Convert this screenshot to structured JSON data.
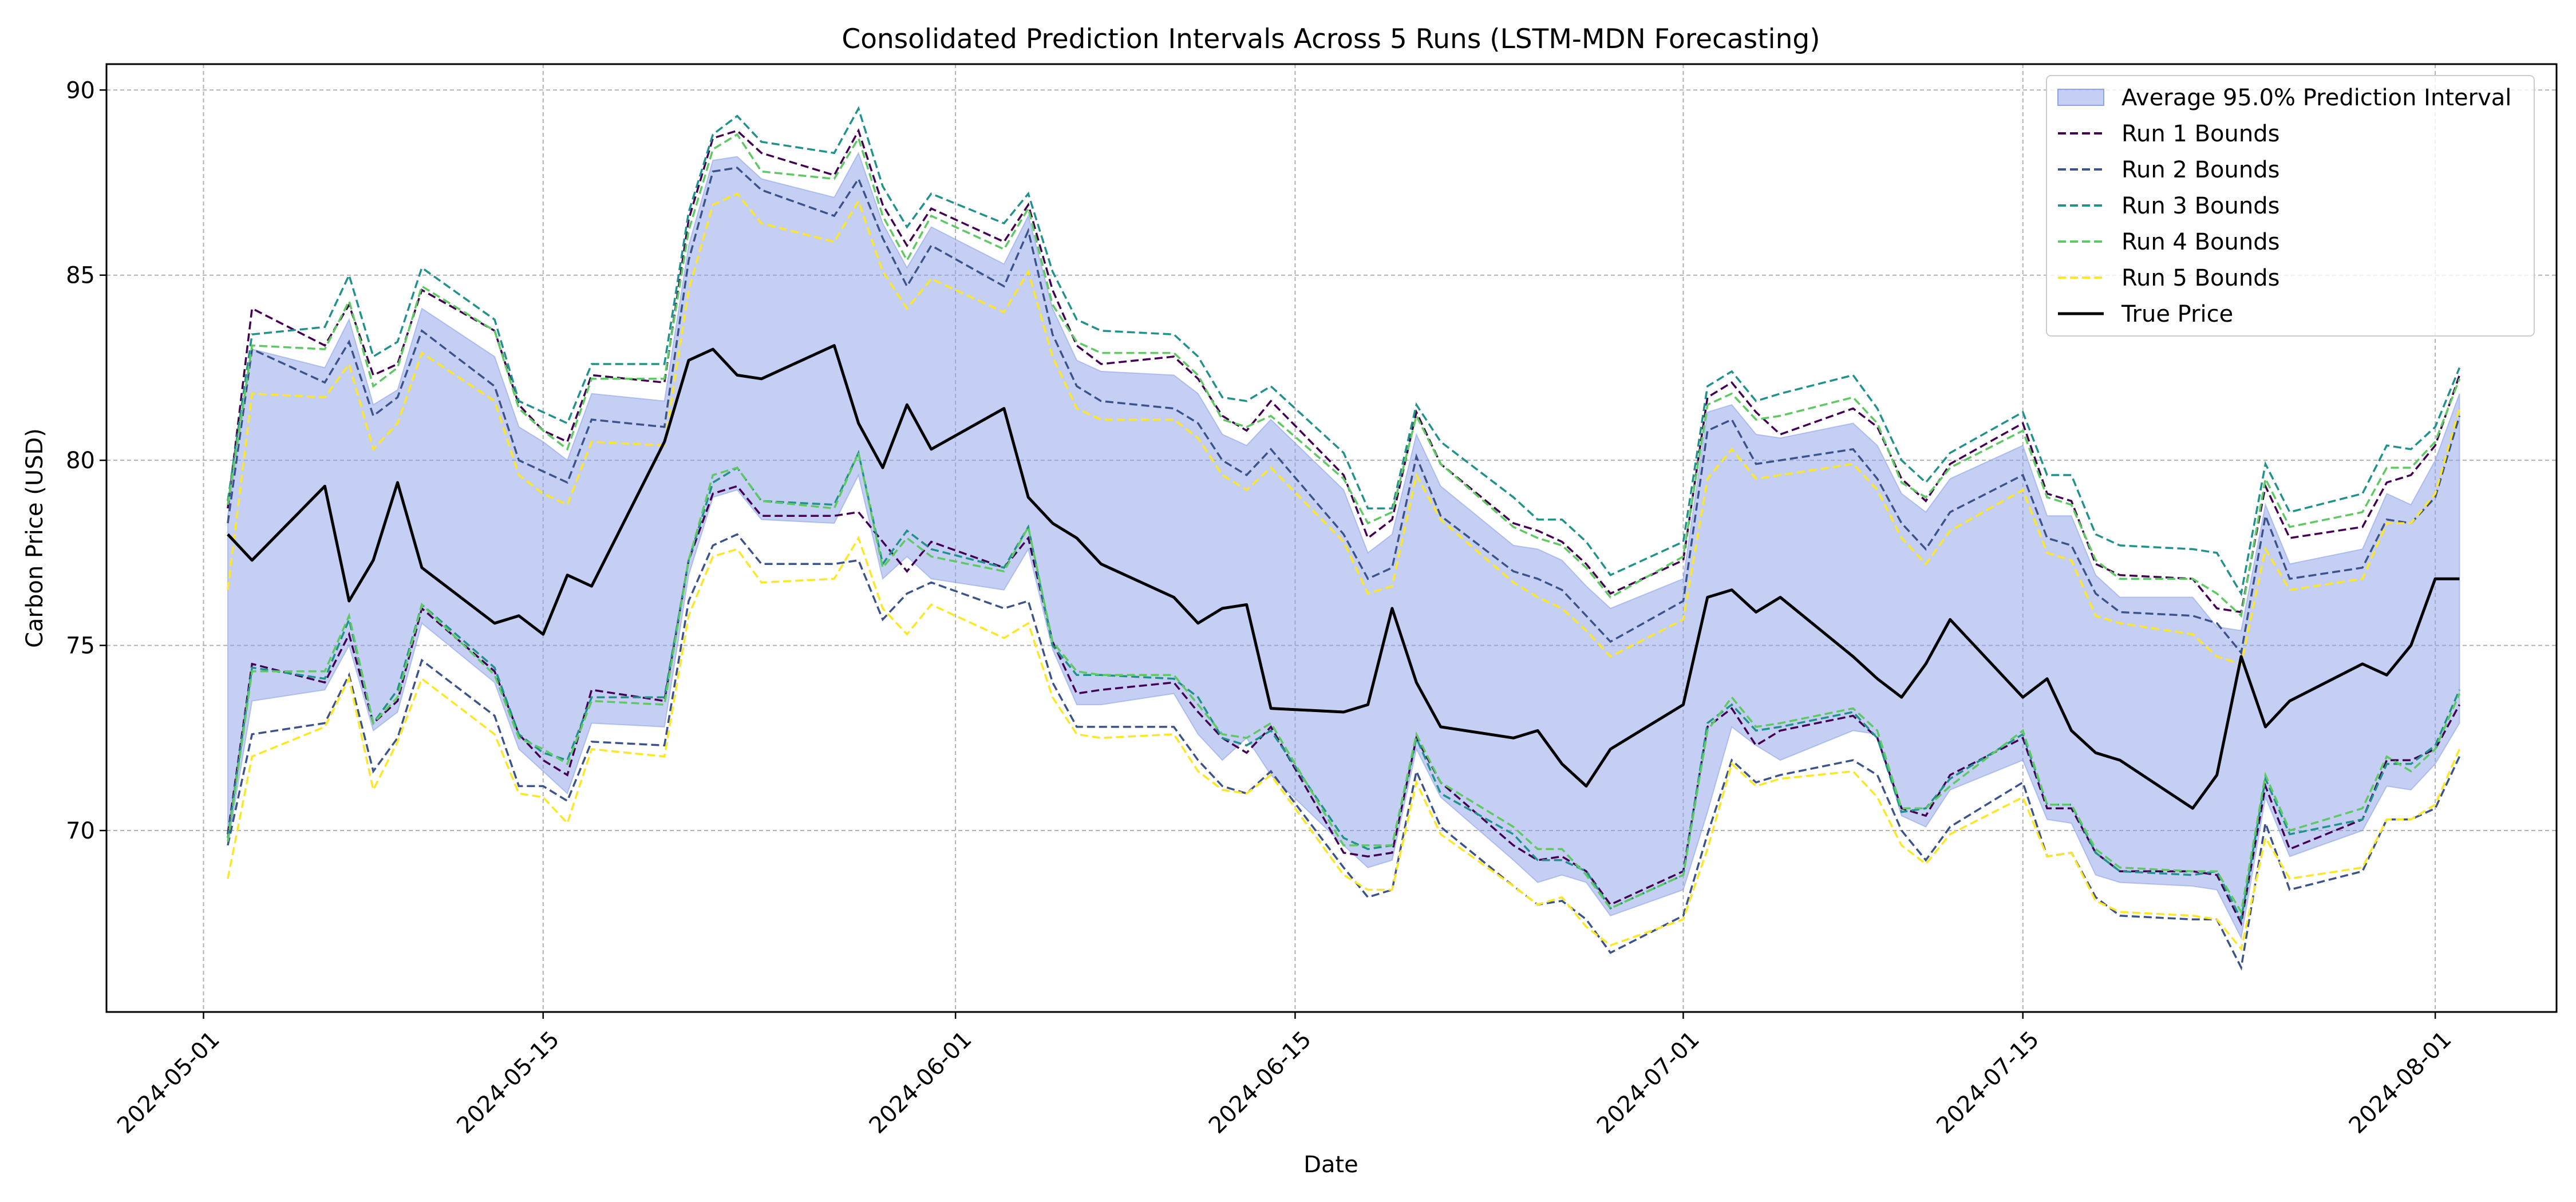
{
  "chart_data": {
    "type": "line",
    "title": "Consolidated Prediction Intervals Across 5 Runs (LSTM-MDN Forecasting)",
    "xlabel": "Date",
    "ylabel": "Carbon Price (USD)",
    "x_tick_labels": [
      "2024-05-01",
      "2024-05-15",
      "2024-06-01",
      "2024-06-15",
      "2024-07-01",
      "2024-07-15",
      "2024-08-01"
    ],
    "y_ticks": [
      70,
      75,
      80,
      85,
      90
    ],
    "ylim": [
      65.1,
      90.7
    ],
    "xlim": [
      "2024-04-27",
      "2024-08-06"
    ],
    "grid": true,
    "legend_position": "top-right",
    "x": [
      "2024-05-02",
      "2024-05-03",
      "2024-05-06",
      "2024-05-07",
      "2024-05-08",
      "2024-05-09",
      "2024-05-10",
      "2024-05-13",
      "2024-05-14",
      "2024-05-15",
      "2024-05-16",
      "2024-05-17",
      "2024-05-20",
      "2024-05-21",
      "2024-05-22",
      "2024-05-23",
      "2024-05-24",
      "2024-05-27",
      "2024-05-28",
      "2024-05-29",
      "2024-05-30",
      "2024-05-31",
      "2024-06-03",
      "2024-06-04",
      "2024-06-05",
      "2024-06-06",
      "2024-06-07",
      "2024-06-10",
      "2024-06-11",
      "2024-06-12",
      "2024-06-13",
      "2024-06-14",
      "2024-06-17",
      "2024-06-18",
      "2024-06-19",
      "2024-06-20",
      "2024-06-21",
      "2024-06-24",
      "2024-06-25",
      "2024-06-26",
      "2024-06-27",
      "2024-06-28",
      "2024-07-01",
      "2024-07-02",
      "2024-07-03",
      "2024-07-04",
      "2024-07-05",
      "2024-07-08",
      "2024-07-09",
      "2024-07-10",
      "2024-07-11",
      "2024-07-12",
      "2024-07-15",
      "2024-07-16",
      "2024-07-17",
      "2024-07-18",
      "2024-07-19",
      "2024-07-22",
      "2024-07-23",
      "2024-07-24",
      "2024-07-25",
      "2024-07-26",
      "2024-07-29",
      "2024-07-30",
      "2024-07-31",
      "2024-08-01",
      "2024-08-02"
    ],
    "true_price": {
      "name": "True Price",
      "color": "#000000",
      "values": [
        78.0,
        77.3,
        79.3,
        76.2,
        77.3,
        79.4,
        77.1,
        75.6,
        75.8,
        75.3,
        76.9,
        76.6,
        80.5,
        82.7,
        83.0,
        82.3,
        82.2,
        83.1,
        81.0,
        79.8,
        81.5,
        80.3,
        81.4,
        79.0,
        78.3,
        77.9,
        77.2,
        76.3,
        75.6,
        76.0,
        76.1,
        73.3,
        73.2,
        73.4,
        76.0,
        74.0,
        72.8,
        72.5,
        72.7,
        71.8,
        71.2,
        72.2,
        73.4,
        76.3,
        76.5,
        75.9,
        76.3,
        74.7,
        74.1,
        73.6,
        74.5,
        75.7,
        73.6,
        74.1,
        72.7,
        72.1,
        71.9,
        70.6,
        71.5,
        74.7,
        72.8,
        73.5,
        74.5,
        74.2,
        75.0,
        76.8,
        76.8
      ]
    },
    "interval": {
      "name": "Average 95.0% Prediction Interval",
      "color": "#8ea3e8",
      "upper": [
        78.5,
        83.0,
        82.5,
        83.8,
        81.5,
        81.9,
        84.1,
        82.8,
        80.9,
        80.5,
        80.0,
        81.8,
        81.6,
        85.8,
        88.1,
        88.2,
        87.6,
        87.1,
        88.3,
        86.4,
        85.2,
        86.3,
        85.3,
        86.6,
        84.1,
        82.7,
        82.4,
        82.3,
        81.8,
        80.7,
        80.4,
        81.1,
        79.2,
        77.5,
        78.0,
        80.7,
        79.3,
        77.7,
        77.6,
        77.3,
        76.6,
        76.0,
        76.8,
        81.3,
        81.5,
        80.7,
        80.6,
        81.0,
        80.4,
        79.1,
        78.6,
        79.5,
        80.4,
        78.5,
        78.5,
        76.9,
        76.3,
        76.3,
        75.5,
        75.4,
        78.8,
        77.2,
        77.6,
        79.1,
        78.8,
        80.0,
        81.8
      ],
      "lower": [
        69.6,
        73.5,
        73.8,
        75.0,
        72.7,
        73.2,
        75.6,
        74.0,
        72.2,
        71.6,
        71.0,
        72.9,
        72.8,
        76.9,
        79.0,
        79.2,
        78.4,
        78.3,
        79.6,
        76.8,
        77.4,
        76.8,
        76.5,
        77.6,
        74.9,
        73.4,
        73.4,
        73.7,
        72.6,
        71.9,
        72.5,
        71.5,
        69.6,
        69.0,
        69.2,
        72.2,
        70.9,
        69.2,
        68.6,
        68.8,
        68.6,
        67.7,
        68.4,
        70.5,
        72.8,
        72.3,
        71.9,
        72.7,
        72.6,
        70.4,
        70.1,
        71.1,
        71.9,
        70.3,
        70.2,
        68.8,
        68.6,
        68.5,
        68.4,
        67.1,
        70.9,
        69.3,
        70.0,
        71.2,
        71.1,
        71.8,
        72.9
      ]
    },
    "series": [
      {
        "name": "Run 1 Bounds",
        "color": "#440154",
        "upper": [
          78.7,
          84.1,
          83.1,
          84.2,
          82.3,
          82.6,
          84.6,
          83.5,
          81.5,
          80.8,
          80.5,
          82.3,
          82.1,
          86.5,
          88.7,
          88.9,
          88.3,
          87.7,
          88.9,
          86.9,
          85.8,
          86.8,
          85.9,
          86.9,
          84.6,
          83.1,
          82.6,
          82.8,
          82.2,
          81.2,
          80.8,
          81.6,
          79.6,
          77.9,
          78.4,
          81.3,
          79.9,
          78.3,
          78.1,
          77.8,
          77.2,
          76.4,
          77.3,
          81.7,
          82.1,
          81.3,
          80.7,
          81.4,
          80.9,
          79.5,
          78.9,
          79.9,
          81.0,
          79.1,
          78.9,
          77.2,
          76.9,
          76.8,
          76.0,
          75.9,
          79.3,
          77.9,
          78.2,
          79.4,
          79.6,
          80.4,
          82.3
        ],
        "lower": [
          69.9,
          74.5,
          74.0,
          75.3,
          72.9,
          73.5,
          76.0,
          74.3,
          72.6,
          71.9,
          71.5,
          73.8,
          73.5,
          77.3,
          79.1,
          79.3,
          78.5,
          78.5,
          78.6,
          77.8,
          77.0,
          77.8,
          77.1,
          77.9,
          75.1,
          73.7,
          73.8,
          74.0,
          73.2,
          72.5,
          72.1,
          72.8,
          69.4,
          69.3,
          69.4,
          72.5,
          71.3,
          69.6,
          69.2,
          69.3,
          68.9,
          68.0,
          68.9,
          72.8,
          73.3,
          72.3,
          72.7,
          73.1,
          72.5,
          70.6,
          70.4,
          71.5,
          72.5,
          70.6,
          70.6,
          69.4,
          68.9,
          68.9,
          68.8,
          67.5,
          71.2,
          69.5,
          70.3,
          71.9,
          71.9,
          72.2,
          73.4
        ]
      },
      {
        "name": "Run 2 Bounds",
        "color": "#3b528b",
        "upper": [
          78.3,
          83.0,
          82.1,
          83.2,
          81.2,
          81.7,
          83.5,
          82.0,
          80.0,
          79.7,
          79.4,
          81.1,
          80.9,
          85.4,
          87.8,
          87.9,
          87.3,
          86.6,
          87.6,
          86.0,
          84.7,
          85.8,
          84.7,
          86.2,
          83.4,
          82.0,
          81.6,
          81.4,
          81.0,
          80.0,
          79.6,
          80.3,
          78.0,
          76.8,
          77.1,
          80.1,
          78.5,
          77.0,
          76.8,
          76.5,
          75.8,
          75.1,
          76.2,
          80.8,
          81.1,
          79.9,
          80.0,
          80.3,
          79.5,
          78.3,
          77.6,
          78.6,
          79.6,
          77.9,
          77.7,
          76.4,
          75.9,
          75.8,
          75.6,
          74.8,
          78.5,
          76.8,
          77.1,
          78.4,
          78.3,
          79.0,
          81.2
        ],
        "lower": [
          69.6,
          72.6,
          72.9,
          74.2,
          71.6,
          72.5,
          74.6,
          73.1,
          71.2,
          71.2,
          70.8,
          72.4,
          72.3,
          76.2,
          77.7,
          78.0,
          77.2,
          77.2,
          77.3,
          75.7,
          76.4,
          76.7,
          76.0,
          76.2,
          74.0,
          72.8,
          72.8,
          72.8,
          71.9,
          71.2,
          71.0,
          71.6,
          69.0,
          68.2,
          68.4,
          71.6,
          70.1,
          68.5,
          68.0,
          68.1,
          67.6,
          66.7,
          67.7,
          69.9,
          71.9,
          71.3,
          71.5,
          71.9,
          71.5,
          70.0,
          69.2,
          70.1,
          71.3,
          69.3,
          69.4,
          68.2,
          67.7,
          67.6,
          67.6,
          66.3,
          70.2,
          68.4,
          68.9,
          70.3,
          70.3,
          70.6,
          72.0
        ]
      },
      {
        "name": "Run 3 Bounds",
        "color": "#21918c",
        "upper": [
          78.9,
          83.4,
          83.6,
          85.0,
          82.8,
          83.2,
          85.2,
          83.8,
          81.6,
          81.3,
          81.0,
          82.6,
          82.6,
          86.7,
          88.8,
          89.3,
          88.6,
          88.3,
          89.5,
          87.4,
          86.3,
          87.2,
          86.4,
          87.2,
          85.1,
          83.8,
          83.5,
          83.4,
          82.8,
          81.7,
          81.6,
          82.0,
          80.2,
          78.7,
          78.7,
          81.5,
          80.5,
          79.0,
          78.4,
          78.4,
          77.8,
          76.9,
          77.8,
          82.0,
          82.4,
          81.6,
          81.8,
          82.3,
          81.4,
          80.0,
          79.4,
          80.2,
          81.3,
          79.6,
          79.6,
          78.0,
          77.7,
          77.6,
          77.5,
          76.4,
          79.9,
          78.6,
          79.1,
          80.4,
          80.3,
          80.9,
          82.5
        ],
        "lower": [
          69.8,
          74.4,
          74.1,
          75.7,
          72.9,
          73.8,
          76.1,
          74.4,
          72.6,
          72.1,
          71.9,
          73.6,
          73.6,
          77.3,
          79.4,
          79.8,
          78.9,
          78.8,
          80.2,
          77.2,
          78.1,
          77.6,
          77.1,
          78.2,
          75.0,
          74.2,
          74.2,
          74.1,
          73.6,
          72.5,
          72.3,
          72.7,
          69.8,
          69.5,
          69.6,
          72.5,
          71.0,
          69.9,
          69.2,
          69.2,
          68.9,
          67.9,
          68.8,
          72.9,
          73.4,
          72.7,
          72.8,
          73.2,
          72.5,
          70.5,
          70.6,
          71.4,
          72.6,
          70.7,
          70.7,
          69.4,
          68.9,
          68.8,
          68.9,
          67.6,
          71.4,
          69.9,
          70.3,
          71.8,
          71.8,
          72.3,
          73.8
        ]
      },
      {
        "name": "Run 4 Bounds",
        "color": "#5ec962",
        "upper": [
          78.8,
          83.1,
          83.0,
          84.3,
          82.0,
          82.5,
          84.7,
          83.5,
          81.4,
          80.8,
          80.3,
          82.2,
          82.2,
          86.2,
          88.4,
          88.8,
          87.8,
          87.6,
          88.7,
          86.6,
          85.4,
          86.6,
          85.7,
          86.8,
          84.2,
          83.2,
          82.9,
          82.9,
          82.3,
          81.1,
          80.9,
          81.2,
          79.5,
          78.3,
          78.6,
          81.2,
          79.9,
          78.2,
          77.9,
          77.7,
          77.1,
          76.3,
          77.4,
          81.5,
          81.8,
          81.1,
          81.2,
          81.7,
          81.0,
          79.4,
          79.0,
          79.8,
          80.8,
          79.0,
          78.8,
          77.3,
          76.8,
          76.8,
          76.4,
          75.8,
          79.5,
          78.2,
          78.6,
          79.8,
          79.8,
          80.5,
          82.2
        ],
        "lower": [
          69.7,
          74.3,
          74.3,
          75.8,
          72.9,
          73.6,
          76.1,
          74.2,
          72.5,
          72.2,
          71.8,
          73.5,
          73.4,
          77.3,
          79.6,
          79.8,
          78.9,
          78.7,
          80.2,
          77.1,
          77.9,
          77.4,
          77.0,
          78.2,
          75.1,
          74.3,
          74.2,
          74.2,
          73.4,
          72.6,
          72.5,
          72.9,
          69.6,
          69.6,
          69.6,
          72.6,
          71.3,
          70.1,
          69.5,
          69.5,
          68.8,
          67.9,
          68.8,
          72.7,
          73.6,
          72.8,
          72.9,
          73.3,
          72.7,
          70.6,
          70.6,
          71.2,
          72.7,
          70.7,
          70.7,
          69.5,
          69.0,
          68.9,
          68.9,
          67.8,
          71.5,
          70.0,
          70.6,
          72.0,
          71.6,
          72.2,
          73.7
        ]
      },
      {
        "name": "Run 5 Bounds",
        "color": "#fde725",
        "upper": [
          76.5,
          81.8,
          81.7,
          82.6,
          80.3,
          81.0,
          82.9,
          81.6,
          79.6,
          79.1,
          78.8,
          80.5,
          80.4,
          84.6,
          86.9,
          87.2,
          86.4,
          85.9,
          87.0,
          85.1,
          84.1,
          84.9,
          84.0,
          85.1,
          82.8,
          81.4,
          81.1,
          81.1,
          80.6,
          79.6,
          79.2,
          79.8,
          77.8,
          76.4,
          76.6,
          79.6,
          78.4,
          76.7,
          76.3,
          76.0,
          75.4,
          74.7,
          75.7,
          79.5,
          80.3,
          79.5,
          79.6,
          79.9,
          79.2,
          77.9,
          77.2,
          78.1,
          79.2,
          77.5,
          77.3,
          75.8,
          75.6,
          75.3,
          74.7,
          74.5,
          77.6,
          76.5,
          76.8,
          78.3,
          78.3,
          79.1,
          81.4
        ],
        "lower": [
          68.7,
          72.0,
          72.8,
          74.1,
          71.1,
          72.4,
          74.1,
          72.6,
          71.0,
          70.9,
          70.2,
          72.2,
          72.0,
          75.8,
          77.4,
          77.6,
          76.7,
          76.8,
          77.9,
          76.0,
          75.3,
          76.1,
          75.2,
          75.6,
          73.6,
          72.6,
          72.5,
          72.6,
          71.6,
          71.1,
          71.0,
          71.5,
          68.8,
          68.4,
          68.4,
          71.3,
          69.9,
          68.5,
          68.0,
          68.2,
          67.4,
          66.9,
          67.6,
          69.5,
          71.8,
          71.2,
          71.4,
          71.6,
          70.9,
          69.6,
          69.1,
          69.9,
          70.9,
          69.3,
          69.4,
          68.1,
          67.8,
          67.7,
          67.6,
          66.8,
          69.8,
          68.7,
          69.0,
          70.3,
          70.3,
          70.7,
          72.2
        ]
      }
    ]
  }
}
